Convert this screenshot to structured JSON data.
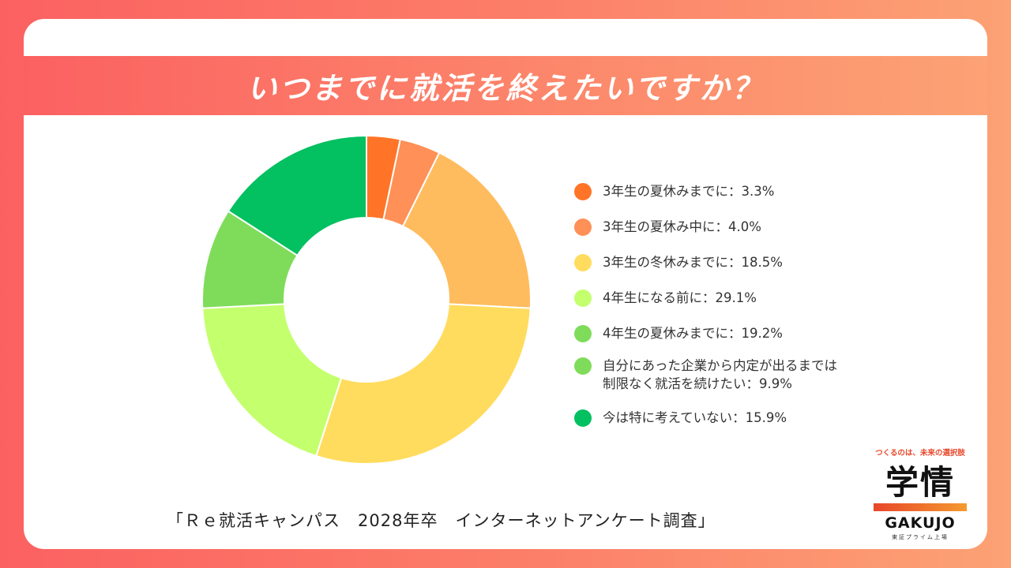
{
  "title": "いつまでに就活を終えたいですか？",
  "chart_data": {
    "type": "pie",
    "categories": [
      "3年生の夏休みまでに",
      "3年生の夏休み中に",
      "3年生の冬休みまでに",
      "4年生になる前に",
      "4年生の夏休みまでに",
      "自分にあった企業から内定が出るまでは制限なく就活を続けたい",
      "今は特に考えていない"
    ],
    "values": [
      3.3,
      4.0,
      18.5,
      29.1,
      19.2,
      9.9,
      15.9
    ],
    "colors": [
      "#ff7426",
      "#ff9057",
      "#ffbc5e",
      "#ffdc5e",
      "#c4ff6e",
      "#7fdc5a",
      "#03c060"
    ],
    "hole": "white",
    "legend_position": "right"
  },
  "legend": [
    {
      "label": "3年生の夏休みまでに：3.3%",
      "color": "#ff7426"
    },
    {
      "label": "3年生の夏休み中に：4.0%",
      "color": "#ff9057"
    },
    {
      "label": "3年生の冬休みまでに：18.5%",
      "color": "#ffdc5e"
    },
    {
      "label": "4年生になる前に：29.1%",
      "color": "#c4ff6e"
    },
    {
      "label": "4年生の夏休みまでに：19.2%",
      "color": "#7fdc5a"
    },
    {
      "label": "自分にあった企業から内定が出るまでは制限なく就活を続けたい：9.9%",
      "color": "#7fdc5a"
    },
    {
      "label": "今は特に考えていない：15.9%",
      "color": "#03c060"
    }
  ],
  "source": "「Ｒｅ就活キャンパス　2028年卒　インターネットアンケート調査」",
  "logo": {
    "tagline": "つくるのは、未来の選択肢",
    "mark": "学情",
    "name": "GAKUJO",
    "sub": "東証プライム上場"
  }
}
